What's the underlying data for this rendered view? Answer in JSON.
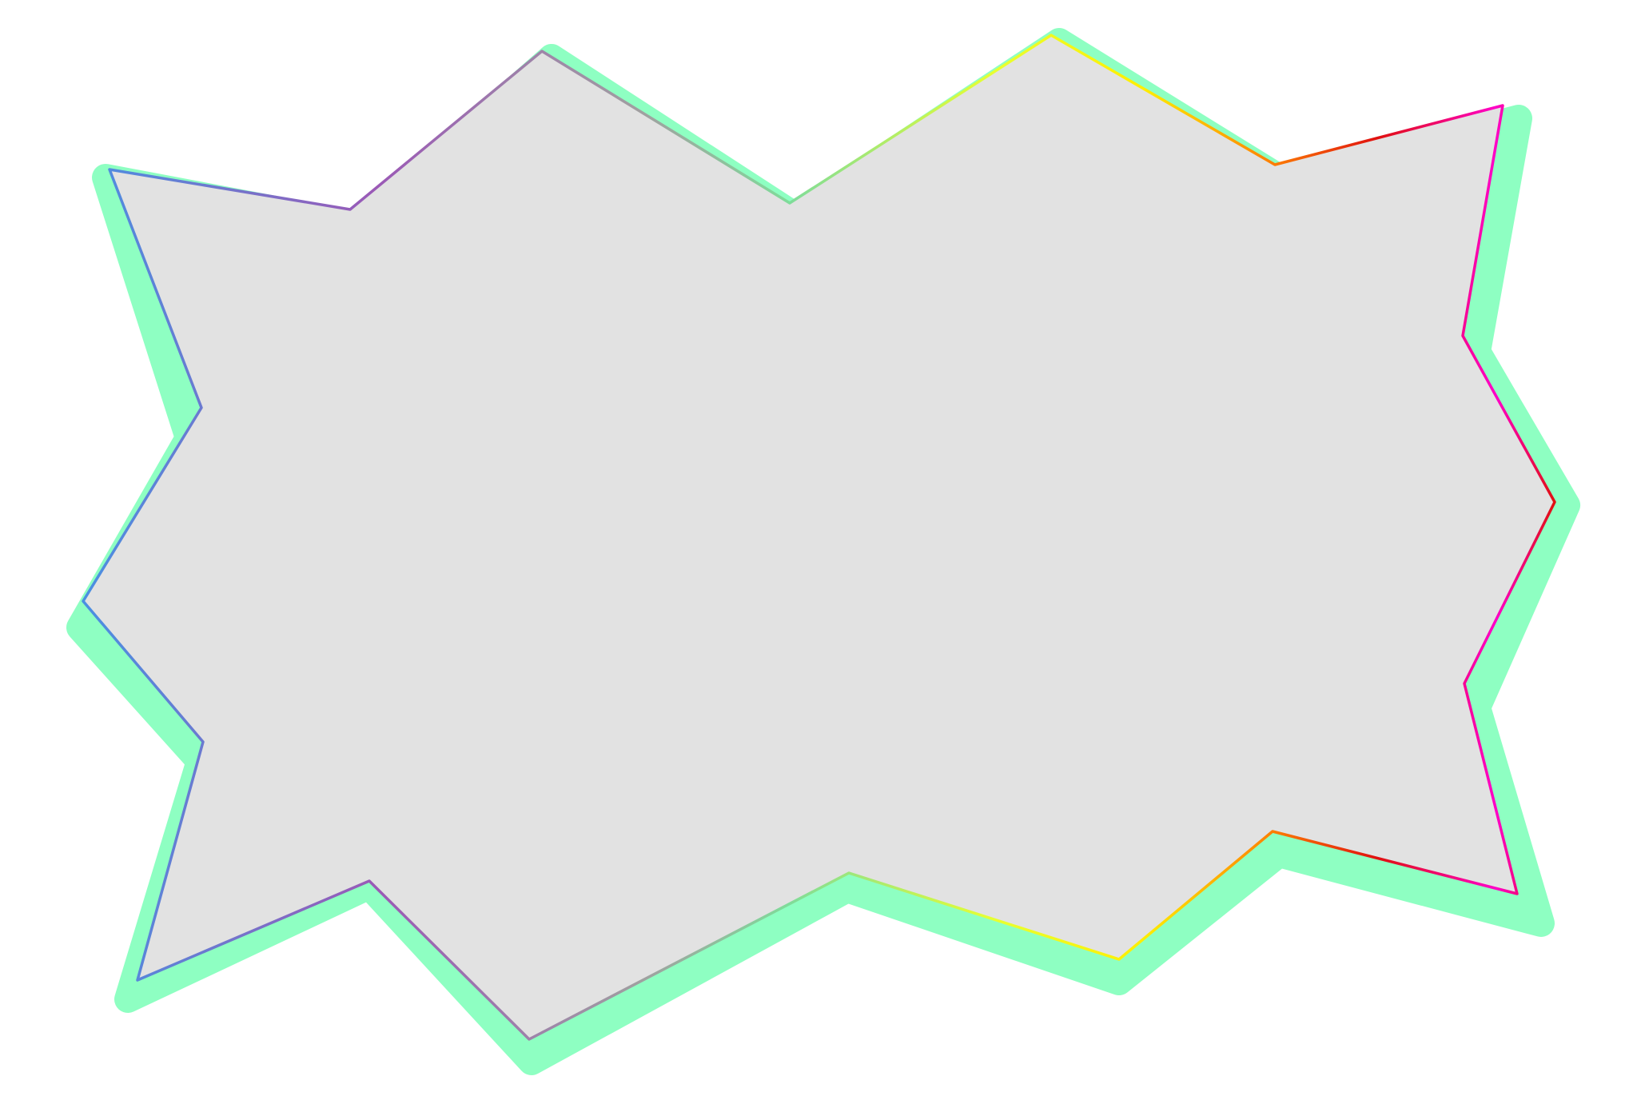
{
  "colors": {
    "background": "#ffffff",
    "shadow": "#8effc2",
    "fill": "#e2e2e2",
    "outline_stops": [
      "#4a90e2",
      "#9b59b6",
      "#a0a0a0",
      "#7fdc9a",
      "#d4ff3a",
      "#ffee00",
      "#ff8a00",
      "#e01010",
      "#ff00c8",
      "#e01010",
      "#ff8a00",
      "#ffee00",
      "#7fdc9a",
      "#a0a0a0",
      "#9b59b6",
      "#6a7fd8"
    ]
  },
  "shape": {
    "kind": "starburst-badge",
    "has_shadow": true,
    "has_gradient_outline": true
  }
}
